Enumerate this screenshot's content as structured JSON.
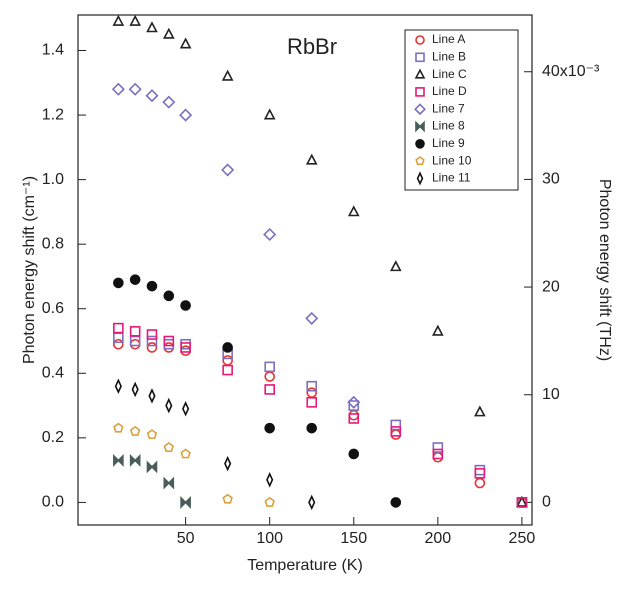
{
  "chart_data": {
    "type": "scatter",
    "title": "RbBr",
    "x_label": "Temperature (K)",
    "y_label": "Photon energy shift (cm⁻¹)",
    "y2_label": "Photon energy shift (THz)",
    "xlim": [
      -14,
      256
    ],
    "xticks": [
      50,
      100,
      150,
      200,
      250
    ],
    "ylim": [
      -0.07,
      1.51
    ],
    "yticks": [
      {
        "value": 0,
        "label": "0.0"
      },
      {
        "value": 0.2,
        "label": "0.2"
      },
      {
        "value": 0.4,
        "label": "0.4"
      },
      {
        "value": 0.6,
        "label": "0.6"
      },
      {
        "value": 0.8,
        "label": "0.8"
      },
      {
        "value": 1.0,
        "label": "1.0"
      },
      {
        "value": 1.2,
        "label": "1.2"
      },
      {
        "value": 1.4,
        "label": "1.4"
      }
    ],
    "y2lim": [
      -2.1,
      45.27
    ],
    "y2ticks": [
      0,
      10,
      20,
      30,
      {
        "value": 40,
        "label": "40x10⁻³"
      }
    ],
    "legend": "upper right",
    "series": [
      {
        "name": "Line A",
        "marker": "circle",
        "filled": false,
        "color": "#e8302f",
        "x": [
          10,
          20,
          30,
          40,
          50,
          75,
          100,
          125,
          150,
          175,
          200,
          225,
          250
        ],
        "values": [
          0.49,
          0.49,
          0.48,
          0.48,
          0.47,
          0.44,
          0.39,
          0.34,
          0.27,
          0.21,
          0.14,
          0.06,
          0.0
        ]
      },
      {
        "name": "Line B",
        "marker": "square",
        "filled": false,
        "color": "#7b6fc0",
        "x": [
          10,
          20,
          30,
          40,
          50,
          75,
          100,
          125,
          150,
          175,
          200,
          225,
          250
        ],
        "values": [
          0.51,
          0.5,
          0.5,
          0.49,
          0.49,
          0.46,
          0.42,
          0.36,
          0.3,
          0.24,
          0.17,
          0.1,
          0.0
        ]
      },
      {
        "name": "Line C",
        "marker": "triangle",
        "filled": false,
        "color": "#222222",
        "x": [
          10,
          20,
          30,
          40,
          50,
          75,
          100,
          125,
          150,
          175,
          200,
          225,
          250
        ],
        "values": [
          1.49,
          1.49,
          1.47,
          1.45,
          1.42,
          1.32,
          1.2,
          1.06,
          0.9,
          0.73,
          0.53,
          0.28,
          0.0
        ]
      },
      {
        "name": "Line D",
        "marker": "square",
        "filled": false,
        "color": "#e5197a",
        "x": [
          10,
          20,
          30,
          40,
          50,
          75,
          100,
          125,
          150,
          175,
          200,
          225,
          250
        ],
        "values": [
          0.54,
          0.53,
          0.52,
          0.5,
          0.48,
          0.41,
          0.35,
          0.31,
          0.26,
          0.22,
          0.15,
          0.09,
          0.0
        ]
      },
      {
        "name": "Line 7",
        "marker": "diamond",
        "filled": false,
        "color": "#7b6fc0",
        "x": [
          10,
          20,
          30,
          40,
          50,
          75,
          100,
          125,
          150
        ],
        "values": [
          1.28,
          1.28,
          1.26,
          1.24,
          1.2,
          1.03,
          0.83,
          0.57,
          0.31
        ]
      },
      {
        "name": "Line 8",
        "marker": "bowtie",
        "filled": true,
        "color": "#4a5d5a",
        "x": [
          10,
          20,
          30,
          40,
          50
        ],
        "values": [
          0.13,
          0.13,
          0.11,
          0.06,
          0.0
        ]
      },
      {
        "name": "Line 9",
        "marker": "circle",
        "filled": true,
        "color": "#111111",
        "x": [
          10,
          20,
          30,
          40,
          50,
          75,
          100,
          125,
          150,
          175
        ],
        "values": [
          0.68,
          0.69,
          0.67,
          0.64,
          0.61,
          0.48,
          0.23,
          0.23,
          0.15,
          0.0
        ]
      },
      {
        "name": "Line 10",
        "marker": "pentagon",
        "filled": false,
        "color": "#d9a040",
        "x": [
          10,
          20,
          30,
          40,
          50,
          75,
          100
        ],
        "values": [
          0.23,
          0.22,
          0.21,
          0.17,
          0.15,
          0.01,
          0.0
        ]
      },
      {
        "name": "Line 11",
        "marker": "thin-diamond",
        "filled": false,
        "color": "#111111",
        "x": [
          10,
          20,
          30,
          40,
          50,
          75,
          100,
          125
        ],
        "values": [
          0.36,
          0.35,
          0.33,
          0.3,
          0.29,
          0.12,
          0.07,
          0.0
        ]
      }
    ]
  }
}
